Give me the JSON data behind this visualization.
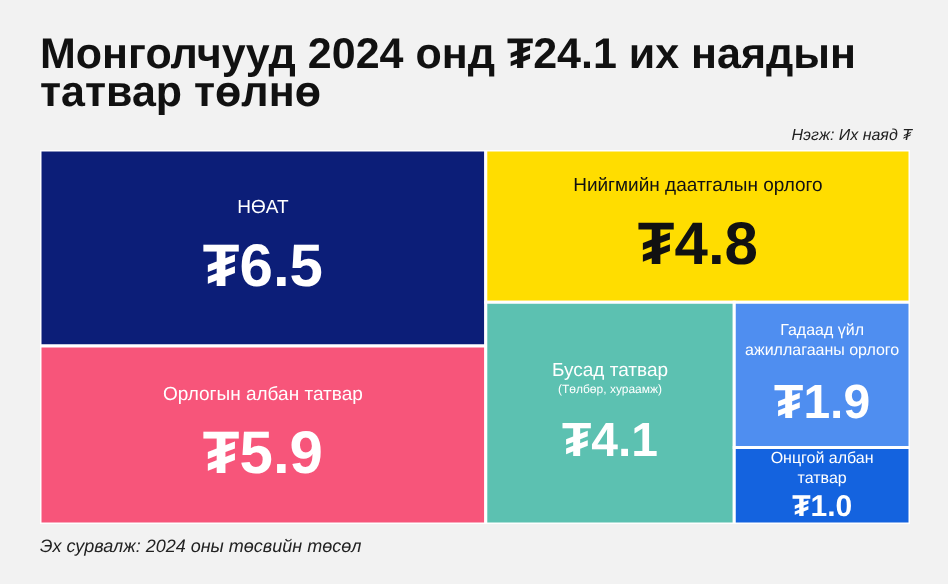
{
  "chart_data": {
    "type": "other",
    "title": "Монголчууд 2024 онд ₮24.1 их наядын татвар төлнө",
    "categories": [
      "НӨАТ",
      "Орлогын албан татвар",
      "Нийгмийн даатгалын орлого",
      "Бусад татвар",
      "Гадаад үйл ажиллагааны орлого",
      "Онцгой албан татвар"
    ],
    "values": [
      6.5,
      5.9,
      4.8,
      4.1,
      1.9,
      1.0
    ],
    "value_labels": [
      "₮6.5",
      "₮5.9",
      "₮4.8",
      "₮4.1",
      "₮1.9",
      "₮1.0"
    ],
    "colors": [
      "#0c1e78",
      "#f7557a",
      "#ffdd00",
      "#5cc1b1",
      "#4f8ef0",
      "#1463df"
    ],
    "annotations": [
      {
        "text": "(Төлбөр, хураамж)",
        "x": "Бусад татвар"
      },
      "Нэгж: Их наяд ₮",
      "Эх сурвалж: 2024 оны төсвийн төсөл"
    ]
  }
}
